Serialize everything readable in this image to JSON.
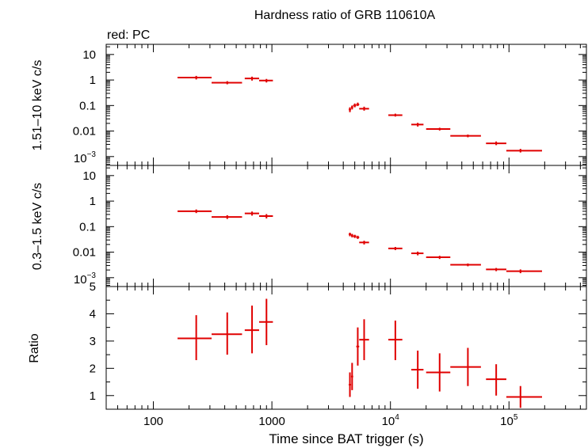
{
  "chart_data": {
    "type": "scatter",
    "title": "Hardness ratio of GRB 110610A",
    "legend": "red: PC",
    "xlabel": "Time since BAT trigger (s)",
    "xscale": "log",
    "xlim": [
      40,
      450000
    ],
    "x_ticks": [
      {
        "value": 100,
        "label": "100"
      },
      {
        "value": 1000,
        "label": "1000"
      },
      {
        "value": 10000,
        "base": "10",
        "exp": "4"
      },
      {
        "value": 100000,
        "base": "10",
        "exp": "5"
      }
    ],
    "panels": [
      {
        "name": "hard",
        "ylabel": "1.51–10 keV c/s",
        "yscale": "log",
        "ylim": [
          0.00045,
          25
        ],
        "y_ticks": [
          {
            "value": 10,
            "label": "10"
          },
          {
            "value": 1,
            "label": "1"
          },
          {
            "value": 0.1,
            "label": "0.1"
          },
          {
            "value": 0.01,
            "label": "0.01"
          },
          {
            "value": 0.001,
            "base": "10",
            "exp": "−3"
          }
        ],
        "points": [
          {
            "x": 230,
            "xlo": 160,
            "xhi": 310,
            "y": 1.25,
            "ylo": 1.05,
            "yhi": 1.45
          },
          {
            "x": 420,
            "xlo": 310,
            "xhi": 560,
            "y": 0.78,
            "ylo": 0.68,
            "yhi": 0.9
          },
          {
            "x": 680,
            "xlo": 590,
            "xhi": 780,
            "y": 1.15,
            "ylo": 0.95,
            "yhi": 1.35
          },
          {
            "x": 900,
            "xlo": 780,
            "xhi": 1020,
            "y": 0.95,
            "ylo": 0.8,
            "yhi": 1.1
          },
          {
            "x": 4550,
            "xlo": 4450,
            "xhi": 4650,
            "y": 0.07,
            "ylo": 0.055,
            "yhi": 0.085
          },
          {
            "x": 4750,
            "xlo": 4650,
            "xhi": 4850,
            "y": 0.085,
            "ylo": 0.07,
            "yhi": 0.1
          },
          {
            "x": 5000,
            "xlo": 4850,
            "xhi": 5150,
            "y": 0.1,
            "ylo": 0.085,
            "yhi": 0.12
          },
          {
            "x": 5300,
            "xlo": 5150,
            "xhi": 5450,
            "y": 0.11,
            "ylo": 0.095,
            "yhi": 0.13
          },
          {
            "x": 6000,
            "xlo": 5450,
            "xhi": 6600,
            "y": 0.075,
            "ylo": 0.063,
            "yhi": 0.09
          },
          {
            "x": 11000,
            "xlo": 9600,
            "xhi": 12600,
            "y": 0.042,
            "ylo": 0.037,
            "yhi": 0.048
          },
          {
            "x": 17000,
            "xlo": 15000,
            "xhi": 19000,
            "y": 0.018,
            "ylo": 0.015,
            "yhi": 0.021
          },
          {
            "x": 26000,
            "xlo": 20000,
            "xhi": 32000,
            "y": 0.012,
            "ylo": 0.0105,
            "yhi": 0.0135
          },
          {
            "x": 45000,
            "xlo": 32000,
            "xhi": 58000,
            "y": 0.0065,
            "ylo": 0.0057,
            "yhi": 0.0073
          },
          {
            "x": 78000,
            "xlo": 64000,
            "xhi": 95000,
            "y": 0.0033,
            "ylo": 0.0028,
            "yhi": 0.0039
          },
          {
            "x": 125000,
            "xlo": 95000,
            "xhi": 190000,
            "y": 0.0017,
            "ylo": 0.00145,
            "yhi": 0.002
          }
        ]
      },
      {
        "name": "soft",
        "ylabel": "0.3–1.5 keV c/s",
        "yscale": "log",
        "ylim": [
          0.00045,
          25
        ],
        "y_ticks": [
          {
            "value": 10,
            "label": "10"
          },
          {
            "value": 1,
            "label": "1"
          },
          {
            "value": 0.1,
            "label": "0.1"
          },
          {
            "value": 0.01,
            "label": "0.01"
          },
          {
            "value": 0.001,
            "base": "10",
            "exp": "−3"
          }
        ],
        "points": [
          {
            "x": 230,
            "xlo": 160,
            "xhi": 310,
            "y": 0.4,
            "ylo": 0.34,
            "yhi": 0.47
          },
          {
            "x": 420,
            "xlo": 310,
            "xhi": 560,
            "y": 0.24,
            "ylo": 0.2,
            "yhi": 0.28
          },
          {
            "x": 680,
            "xlo": 590,
            "xhi": 780,
            "y": 0.33,
            "ylo": 0.27,
            "yhi": 0.39
          },
          {
            "x": 900,
            "xlo": 780,
            "xhi": 1020,
            "y": 0.26,
            "ylo": 0.21,
            "yhi": 0.31
          },
          {
            "x": 4550,
            "xlo": 4450,
            "xhi": 4650,
            "y": 0.05,
            "ylo": 0.042,
            "yhi": 0.058
          },
          {
            "x": 4750,
            "xlo": 4650,
            "xhi": 4850,
            "y": 0.045,
            "ylo": 0.038,
            "yhi": 0.052
          },
          {
            "x": 5000,
            "xlo": 4850,
            "xhi": 5150,
            "y": 0.042,
            "ylo": 0.036,
            "yhi": 0.048
          },
          {
            "x": 5300,
            "xlo": 5150,
            "xhi": 5450,
            "y": 0.038,
            "ylo": 0.033,
            "yhi": 0.044
          },
          {
            "x": 6000,
            "xlo": 5450,
            "xhi": 6600,
            "y": 0.024,
            "ylo": 0.02,
            "yhi": 0.028
          },
          {
            "x": 11000,
            "xlo": 9600,
            "xhi": 12600,
            "y": 0.014,
            "ylo": 0.012,
            "yhi": 0.016
          },
          {
            "x": 17000,
            "xlo": 15000,
            "xhi": 19000,
            "y": 0.009,
            "ylo": 0.0075,
            "yhi": 0.0105
          },
          {
            "x": 26000,
            "xlo": 20000,
            "xhi": 32000,
            "y": 0.0063,
            "ylo": 0.0054,
            "yhi": 0.0072
          },
          {
            "x": 45000,
            "xlo": 32000,
            "xhi": 58000,
            "y": 0.0032,
            "ylo": 0.0028,
            "yhi": 0.0036
          },
          {
            "x": 78000,
            "xlo": 64000,
            "xhi": 95000,
            "y": 0.0021,
            "ylo": 0.0018,
            "yhi": 0.0024
          },
          {
            "x": 125000,
            "xlo": 95000,
            "xhi": 190000,
            "y": 0.0018,
            "ylo": 0.0015,
            "yhi": 0.0021
          }
        ]
      },
      {
        "name": "ratio",
        "ylabel": "Ratio",
        "yscale": "linear",
        "ylim": [
          0.5,
          5
        ],
        "y_ticks": [
          {
            "value": 1,
            "label": "1"
          },
          {
            "value": 2,
            "label": "2"
          },
          {
            "value": 3,
            "label": "3"
          },
          {
            "value": 4,
            "label": "4"
          },
          {
            "value": 5,
            "label": "5"
          }
        ],
        "points": [
          {
            "x": 230,
            "xlo": 160,
            "xhi": 310,
            "y": 3.1,
            "ylo": 2.3,
            "yhi": 3.95
          },
          {
            "x": 420,
            "xlo": 310,
            "xhi": 560,
            "y": 3.25,
            "ylo": 2.5,
            "yhi": 4.05
          },
          {
            "x": 680,
            "xlo": 590,
            "xhi": 780,
            "y": 3.4,
            "ylo": 2.55,
            "yhi": 4.3
          },
          {
            "x": 900,
            "xlo": 780,
            "xhi": 1020,
            "y": 3.7,
            "ylo": 2.85,
            "yhi": 4.55
          },
          {
            "x": 4550,
            "xlo": 4450,
            "xhi": 4650,
            "y": 1.4,
            "ylo": 0.95,
            "yhi": 1.85
          },
          {
            "x": 4750,
            "xlo": 4650,
            "xhi": 4850,
            "y": 1.7,
            "ylo": 1.2,
            "yhi": 2.2
          },
          {
            "x": 5300,
            "xlo": 5150,
            "xhi": 5450,
            "y": 2.8,
            "ylo": 2.1,
            "yhi": 3.5
          },
          {
            "x": 6000,
            "xlo": 5450,
            "xhi": 6600,
            "y": 3.05,
            "ylo": 2.3,
            "yhi": 3.8
          },
          {
            "x": 11000,
            "xlo": 9600,
            "xhi": 12600,
            "y": 3.05,
            "ylo": 2.3,
            "yhi": 3.75
          },
          {
            "x": 17000,
            "xlo": 15000,
            "xhi": 19000,
            "y": 1.95,
            "ylo": 1.25,
            "yhi": 2.65
          },
          {
            "x": 26000,
            "xlo": 20000,
            "xhi": 32000,
            "y": 1.85,
            "ylo": 1.15,
            "yhi": 2.55
          },
          {
            "x": 45000,
            "xlo": 32000,
            "xhi": 58000,
            "y": 2.05,
            "ylo": 1.35,
            "yhi": 2.75
          },
          {
            "x": 78000,
            "xlo": 64000,
            "xhi": 95000,
            "y": 1.6,
            "ylo": 1.0,
            "yhi": 2.15
          },
          {
            "x": 125000,
            "xlo": 95000,
            "xhi": 190000,
            "y": 0.95,
            "ylo": 0.55,
            "yhi": 1.35
          }
        ]
      }
    ]
  },
  "colors": {
    "series": "#e00000",
    "axes": "#000000",
    "background": "#ffffff"
  }
}
